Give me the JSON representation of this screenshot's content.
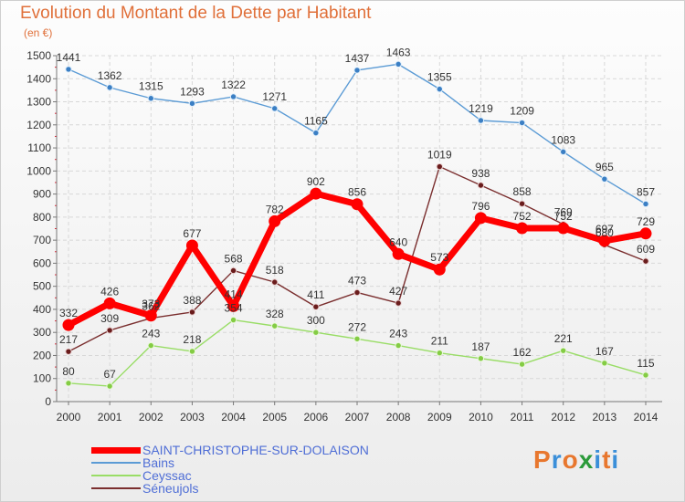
{
  "header": {
    "title": "Evolution du Montant de la Dette par Habitant",
    "subtitle": "(en €)"
  },
  "logo": {
    "letters": [
      "P",
      "r",
      "o",
      "x",
      "i",
      "t",
      "i"
    ],
    "colors": [
      "#e8772e",
      "#3b8fd9",
      "#e8772e",
      "#2b9a3a",
      "#3b8fd9",
      "#e8772e",
      "#3b8fd9"
    ]
  },
  "chart_data": {
    "type": "line",
    "title": "Evolution du Montant de la Dette par Habitant",
    "ylabel": "(en €)",
    "x": [
      "2000",
      "2001",
      "2002",
      "2003",
      "2004",
      "2005",
      "2006",
      "2007",
      "2008",
      "2009",
      "2010",
      "2011",
      "2012",
      "2013",
      "2014"
    ],
    "ylim": [
      0,
      1500
    ],
    "yticks": [
      0,
      100,
      200,
      300,
      400,
      500,
      600,
      700,
      800,
      900,
      1000,
      1100,
      1200,
      1300,
      1400,
      1500
    ],
    "grid": true,
    "legend_position": "bottom-left",
    "series": [
      {
        "name": "SAINT-CHRISTOPHE-SUR-DOLAISON",
        "color": "#ff0000",
        "values": [
          332,
          426,
          373,
          677,
          414,
          782,
          902,
          856,
          640,
          573,
          796,
          752,
          752,
          697,
          729
        ]
      },
      {
        "name": "Bains",
        "color": "#5b9bd5",
        "values": [
          1441,
          1362,
          1315,
          1293,
          1322,
          1271,
          1165,
          1437,
          1463,
          1355,
          1219,
          1209,
          1083,
          965,
          857
        ]
      },
      {
        "name": "Ceyssac",
        "color": "#99dd66",
        "values": [
          80,
          67,
          243,
          218,
          354,
          328,
          300,
          272,
          243,
          211,
          187,
          162,
          221,
          167,
          115
        ]
      },
      {
        "name": "Séneujols",
        "color": "#7a2e2e",
        "values": [
          217,
          309,
          362,
          388,
          568,
          518,
          411,
          473,
          427,
          1019,
          938,
          858,
          769,
          680,
          609
        ]
      }
    ]
  }
}
